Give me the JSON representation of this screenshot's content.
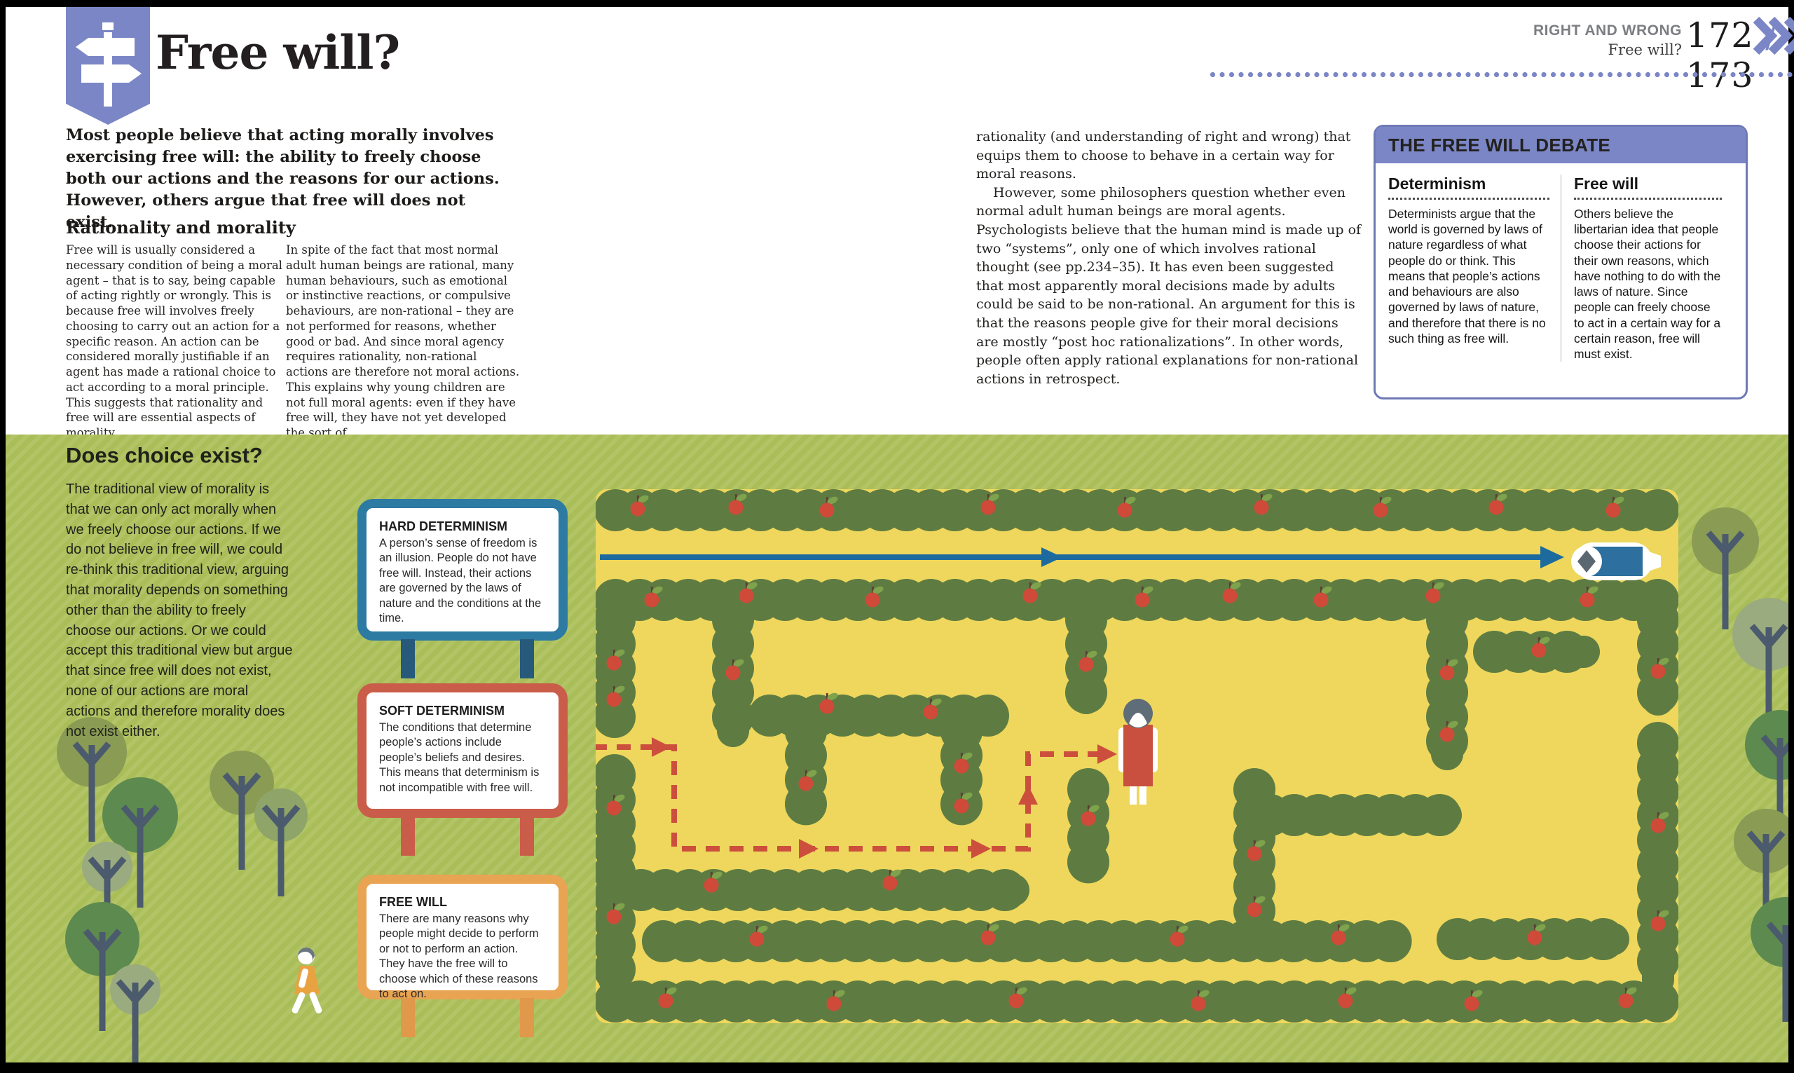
{
  "header": {
    "section": "RIGHT AND WRONG",
    "page_label": "Free will?",
    "pages_left": "172",
    "pages_sep": "/",
    "pages_right": "173"
  },
  "title": "Free will?",
  "intro": "Most people believe that acting morally involves exercising free will: the ability to freely choose both our actions and the reasons for our actions. However, others argue that free will does not exist.",
  "article": {
    "heading": "Rationality and morality",
    "col1": "Free will is usually considered a necessary condition of being a moral agent – that is to say, being capable of acting rightly or wrongly. This is because free will involves freely choosing to carry out an action for a specific reason. An action can be considered morally justifiable if an agent has made a rational choice to act according to a moral principle. This suggests that rationality and free will are essential aspects of morality.",
    "col2": "In spite of the fact that most normal adult human beings are rational, many human behaviours, such as emotional or instinctive reactions, or compulsive behaviours, are non-rational – they are not performed for reasons, whether good or bad. And since moral agency requires rationality, non-rational actions are therefore not moral actions. This explains why young children are not full moral agents: even if they have free will, they have not yet developed the sort of",
    "col3_p1": "rationality (and understanding of right and wrong) that equips them to choose to behave in a certain way for moral reasons.",
    "col3_p2": "However, some philosophers question whether even normal adult human beings are moral agents. Psychologists believe that the human mind is made up of two “systems”, only one of which involves rational thought (see pp.234–35). It has even been suggested that most apparently moral decisions made by adults could be said to be non-rational. An argument for this is that the reasons people give for their moral decisions are mostly “post hoc rationalizations”. In other words, people often apply rational explanations for non-rational actions in retrospect."
  },
  "debate": {
    "title": "THE FREE WILL DEBATE",
    "columns": [
      {
        "heading": "Determinism",
        "text": "Determinists argue that the world is governed by laws of nature regardless of what people do or think. This means that people’s actions and behaviours are also governed by laws of nature, and therefore that there is no such thing as free will."
      },
      {
        "heading": "Free will",
        "text": "Others believe the libertarian idea that people choose their actions for their own reasons, which have nothing to do with the laws of nature. Since people can freely choose to act in a certain way for a certain reason, free will must exist."
      }
    ]
  },
  "panel": {
    "heading": "Does choice exist?",
    "body": "The traditional view of morality is that we can only act morally when we freely choose our actions. If we do not believe in free will, we could re-think this traditional view, arguing that morality depends on something other than the ability to freely choose our actions. Or we could accept this traditional view but argue that since free will does not exist, none of our actions are moral actions and therefore morality does not exist either.",
    "signs": [
      {
        "title": "HARD DETERMINISM",
        "text": "A person’s sense of freedom is an illusion. People do not have free will. Instead, their actions are governed by the laws of nature and the conditions at the time.",
        "color": "#2d7aa3"
      },
      {
        "title": "SOFT DETERMINISM",
        "text": "The conditions that determine people’s actions include people’s beliefs and desires. This means that determinism is not incompatible with free will.",
        "color": "#ca5d49"
      },
      {
        "title": "FREE WILL",
        "text": "There are many reasons why people might decide to perform or not to perform an action. They have the free will to choose which of these reasons to act on.",
        "color": "#e8a452"
      }
    ]
  },
  "icons": {
    "signpost-icon": "white signpost on purple ribbon",
    "triple-chevron-icon": "three right chevrons »»»",
    "apple-icon": "red apple with green leaf",
    "tree-icon": "round tree seen from above",
    "straight-path-icon": "solid blue arrow (determinism)",
    "winding-path-icon": "red dashed arrow (free will)"
  },
  "colors": {
    "accent_purple": "#7b86c6",
    "green_bg": "#a9bd58",
    "maze_yellow": "#eed75c",
    "hedge_green": "#5e7c42",
    "arrow_blue": "#1d6b9e",
    "path_red": "#cc4f3d",
    "sign_blue": "#2d7aa3",
    "sign_red": "#ca5d49",
    "sign_orange": "#e8a452"
  }
}
